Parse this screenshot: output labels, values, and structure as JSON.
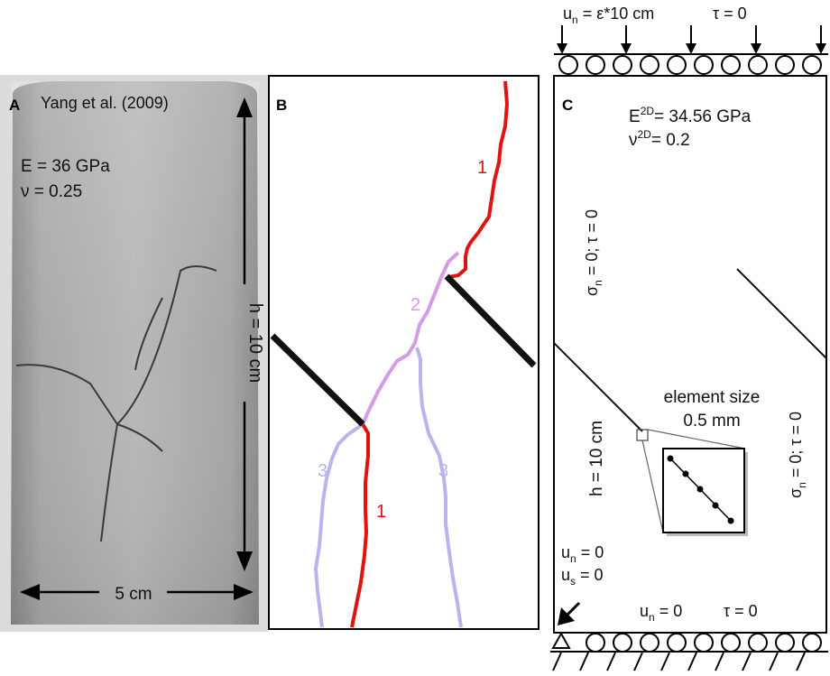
{
  "panel_a": {
    "letter": "A",
    "source": "Yang et al. (2009)",
    "modulus": "E = 36 GPa",
    "poisson": "ν = 0.25",
    "height_label": "h = 10 cm",
    "width_label": "5 cm"
  },
  "panel_b": {
    "letter": "B",
    "crack_labels": [
      "1",
      "2",
      "3",
      "3",
      "1"
    ],
    "colors": {
      "crack_1": "#e0130f",
      "crack_2": "#d49be8",
      "crack_3": "#b7b5ec",
      "flaw": "#111111"
    }
  },
  "panel_c": {
    "letter": "C",
    "top_bc": {
      "un": "u",
      "un_sub": "n",
      "un_rest": " = ε*10 cm",
      "tau": "τ = 0"
    },
    "modulus": {
      "base": "E",
      "sup": "2D",
      "rest": "= 34.56 GPa"
    },
    "poisson": {
      "base": "ν",
      "sup": "2D",
      "rest": "= 0.2"
    },
    "left_bc": {
      "sigma": "σ",
      "sub": "n",
      "rest": " = 0; τ = 0"
    },
    "right_bc": {
      "sigma": "σ",
      "sub": "n",
      "rest": " = 0; τ = 0"
    },
    "height_label": "h = 10 cm",
    "element_size": {
      "line1": "element size",
      "line2": "0.5 mm"
    },
    "corner_bc": {
      "un": {
        "base": "u",
        "sub": "n",
        "rest": " = 0"
      },
      "us": {
        "base": "u",
        "sub": "s",
        "rest": " = 0"
      }
    },
    "bottom_bc": {
      "base": "u",
      "sub": "n",
      "rest": " = 0",
      "tau": "τ = 0"
    }
  }
}
